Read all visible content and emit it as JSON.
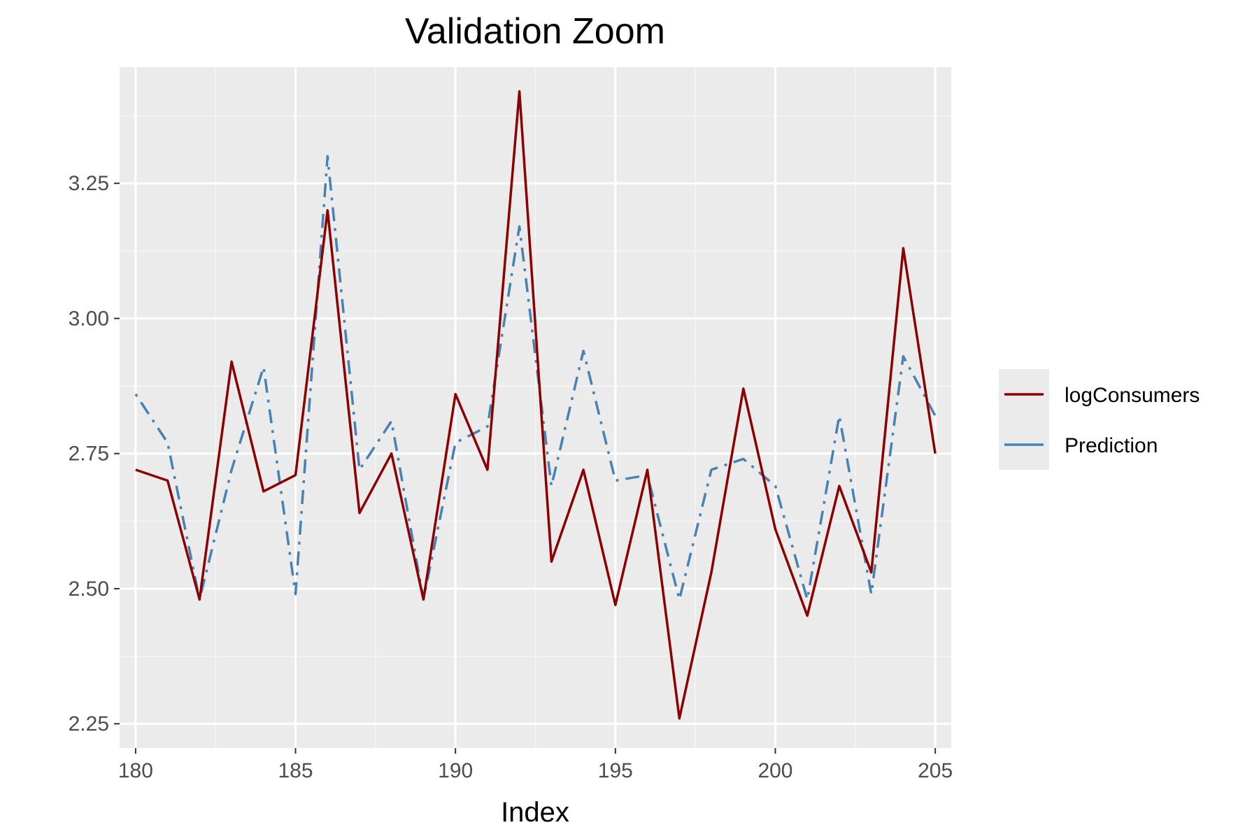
{
  "chart_data": {
    "type": "line",
    "title": "Validation Zoom",
    "xlabel": "Index",
    "ylabel": "",
    "xlim": [
      179.5,
      205.5
    ],
    "ylim": [
      2.205,
      3.465
    ],
    "x_ticks": [
      180,
      185,
      190,
      195,
      200,
      205
    ],
    "y_ticks": [
      2.25,
      2.5,
      2.75,
      3.0,
      3.25
    ],
    "x_tick_labels": [
      "180",
      "185",
      "190",
      "195",
      "200",
      "205"
    ],
    "y_tick_labels": [
      "2.25",
      "2.50",
      "2.75",
      "3.00",
      "3.25"
    ],
    "grid": true,
    "legend_position": "right",
    "x": [
      180,
      181,
      182,
      183,
      184,
      185,
      186,
      187,
      188,
      189,
      190,
      191,
      192,
      193,
      194,
      195,
      196,
      197,
      198,
      199,
      200,
      201,
      202,
      203,
      204,
      205
    ],
    "series": [
      {
        "name": "logConsumers",
        "color": "#8b0000",
        "dash": "solid",
        "values": [
          2.72,
          2.7,
          2.48,
          2.92,
          2.68,
          2.71,
          3.2,
          2.64,
          2.75,
          2.48,
          2.86,
          2.72,
          3.42,
          2.55,
          2.72,
          2.47,
          2.72,
          2.26,
          2.53,
          2.87,
          2.61,
          2.45,
          2.69,
          2.53,
          3.13,
          2.75
        ]
      },
      {
        "name": "Prediction",
        "color": "#4682b4",
        "dash": "dotdash",
        "values": [
          2.86,
          2.77,
          2.48,
          2.72,
          2.91,
          2.49,
          3.3,
          2.72,
          2.81,
          2.48,
          2.77,
          2.8,
          3.17,
          2.69,
          2.94,
          2.7,
          2.71,
          2.48,
          2.72,
          2.74,
          2.69,
          2.48,
          2.82,
          2.49,
          2.93,
          2.82
        ]
      }
    ]
  },
  "colors": {
    "panel_background": "#ebebeb",
    "grid_major": "#ffffff",
    "grid_minor": "#f5f5f5",
    "tick_text": "#4d4d4d",
    "tick_mark": "#333333"
  }
}
